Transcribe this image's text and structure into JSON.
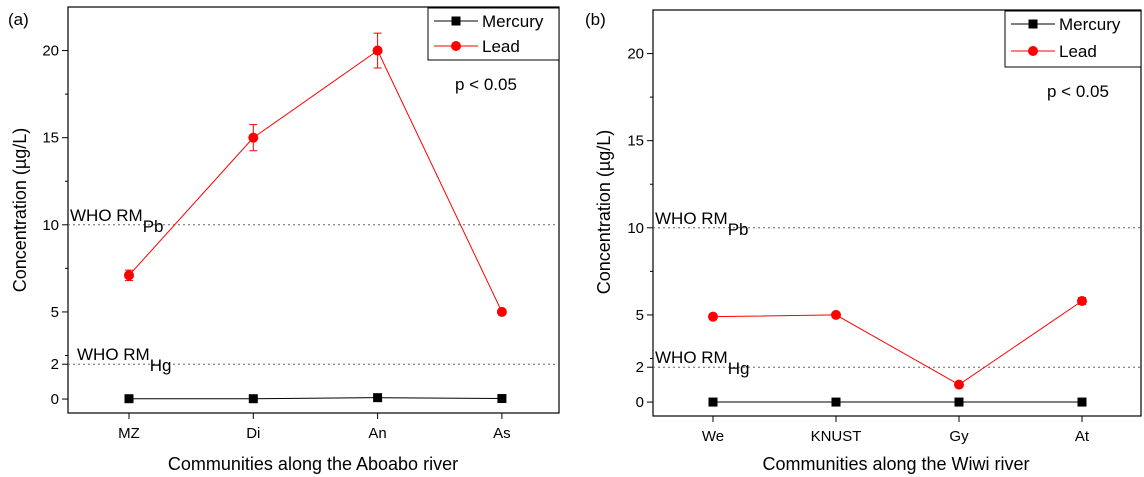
{
  "chart_data": [
    {
      "type": "line",
      "panel_label": "(a)",
      "categories": [
        "MZ",
        "Di",
        "An",
        "As"
      ],
      "xlabel": "Communities along the Aboabo river",
      "ylabel": "Concentration (µg/L)",
      "ylim": [
        -0.8,
        22.5
      ],
      "yticks": [
        0,
        2,
        5,
        10,
        15,
        20
      ],
      "series": [
        {
          "name": "Mercury",
          "color": "#000000",
          "marker": "square",
          "values": [
            0.02,
            0.02,
            0.08,
            0.03
          ],
          "errors": [
            0,
            0,
            0,
            0
          ]
        },
        {
          "name": "Lead",
          "color": "#ff0000",
          "marker": "circle",
          "values": [
            7.1,
            15.0,
            20.0,
            5.0
          ],
          "errors": [
            0.3,
            0.75,
            1.0,
            0
          ]
        }
      ],
      "reference_lines": [
        {
          "value": 10,
          "label_main": "WHO RM",
          "label_sub": "Pb"
        },
        {
          "value": 2,
          "label_main": "WHO RM",
          "label_sub": "Hg"
        }
      ],
      "annotation": "p < 0.05",
      "legend_position": "top-right",
      "grid": false
    },
    {
      "type": "line",
      "panel_label": "(b)",
      "categories": [
        "We",
        "KNUST",
        "Gy",
        "At"
      ],
      "xlabel": "Communities along the Wiwi river",
      "ylabel": "Concentration (µg/L)",
      "ylim": [
        -0.8,
        22.5
      ],
      "yticks": [
        0,
        2,
        5,
        10,
        15,
        20
      ],
      "series": [
        {
          "name": "Mercury",
          "color": "#000000",
          "marker": "square",
          "values": [
            0.0,
            0.0,
            0.0,
            0.0
          ],
          "errors": [
            0,
            0,
            0,
            0
          ]
        },
        {
          "name": "Lead",
          "color": "#ff0000",
          "marker": "circle",
          "values": [
            4.9,
            5.0,
            1.0,
            5.8
          ],
          "errors": [
            0,
            0,
            0,
            0.2
          ]
        }
      ],
      "reference_lines": [
        {
          "value": 10,
          "label_main": "WHO RM",
          "label_sub": "Pb"
        },
        {
          "value": 2,
          "label_main": "WHO RM",
          "label_sub": "Hg"
        }
      ],
      "annotation": "p < 0.05",
      "legend_position": "top-right",
      "grid": false
    }
  ]
}
